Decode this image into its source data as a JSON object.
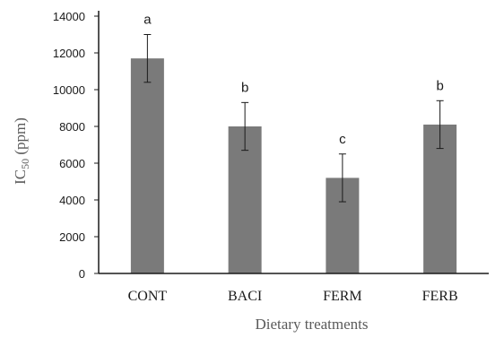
{
  "chart_data": {
    "type": "bar",
    "title": "",
    "xlabel": "Dietary treatments",
    "ylabel_prefix": "IC",
    "ylabel_subscript": "50",
    "ylabel_suffix": " (ppm)",
    "categories": [
      "CONT",
      "BACI",
      "FERM",
      "FERB"
    ],
    "series": [
      {
        "values": [
          11700,
          8000,
          5200,
          8100
        ],
        "error": [
          1300,
          1300,
          1300,
          1300
        ],
        "significance_labels": [
          "a",
          "b",
          "c",
          "b"
        ]
      }
    ],
    "ylim": [
      0,
      14000
    ],
    "yticks": [
      0,
      2000,
      4000,
      6000,
      8000,
      10000,
      12000,
      14000
    ],
    "grid": false,
    "legend": "none",
    "colors": {
      "bar": "#7a7a7a",
      "axis": "#1a1a1a",
      "error_bar": "#1a1a1a"
    }
  }
}
